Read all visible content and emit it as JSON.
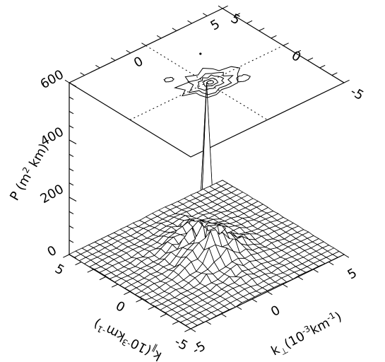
{
  "chart_data": {
    "type": "surface",
    "title": "",
    "zlabel": "P (m² km)",
    "zlabel_parts": {
      "pre": "P (m",
      "sup": "2",
      "post": " km)"
    },
    "xlabel": "k⊥(10⁻³km⁻¹)",
    "xlabel_parts": {
      "k": "k",
      "sub": "⊥",
      "mid": "(10",
      "exp": "-3",
      "unit": "km",
      "unitexp": "-1",
      "close": ")"
    },
    "ylabel": "k∥(10⁻³km⁻¹)",
    "ylabel_parts": {
      "k": "k",
      "sub": "∥",
      "mid": "(10",
      "exp": "-3",
      "unit": "km",
      "unitexp": "-1",
      "close": ")"
    },
    "z_ticks": [
      "0",
      "200",
      "400",
      "600"
    ],
    "z_range": [
      0,
      600
    ],
    "x_ticks_bottom": [
      "-5",
      "0",
      "5"
    ],
    "y_ticks_bottom": [
      "5",
      "0",
      "-5"
    ],
    "top_plane_ticks_right": [
      "5",
      "0",
      "-5"
    ],
    "top_plane_ticks_left": [
      "5",
      "0"
    ],
    "x_range": [
      -5,
      5
    ],
    "y_range": [
      -5,
      5
    ],
    "peak": {
      "kperp": 0,
      "kpar": 0,
      "P": 600
    },
    "contour_projection": "top",
    "grid_lines_top": "dotted"
  }
}
